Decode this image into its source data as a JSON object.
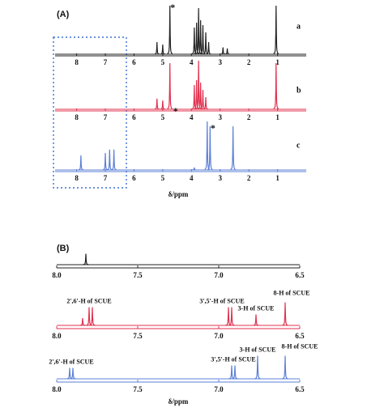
{
  "chart_data": [
    {
      "type": "spectrum",
      "label": "(A)",
      "x_label": "δ/ppm",
      "xlim": [
        8.75,
        0
      ],
      "xticks": [
        8,
        7,
        6,
        5,
        4,
        3,
        2,
        1
      ],
      "series": [
        {
          "name": "a",
          "color": "#222222",
          "x": [
            5.2,
            5.0,
            4.75,
            3.9,
            3.82,
            3.75,
            3.68,
            3.6,
            3.5,
            3.4,
            2.9,
            2.75,
            1.05
          ],
          "values": [
            25,
            20,
            100,
            55,
            65,
            95,
            70,
            60,
            45,
            25,
            14,
            12,
            100
          ],
          "annotations": [
            {
              "text": "*",
              "x": 4.65
            }
          ]
        },
        {
          "name": "b",
          "color": "#e0304e",
          "x": [
            5.2,
            5.0,
            4.75,
            3.9,
            3.82,
            3.75,
            3.68,
            3.6,
            3.5,
            1.05
          ],
          "values": [
            22,
            18,
            95,
            50,
            60,
            100,
            55,
            40,
            25,
            95
          ],
          "annotations": [
            {
              "text": "*",
              "x": 4.55
            }
          ]
        },
        {
          "name": "c",
          "color": "#5b7fd6",
          "x": [
            7.85,
            7.0,
            6.85,
            6.7,
            3.9,
            3.45,
            3.35,
            2.55
          ],
          "values": [
            30,
            35,
            42,
            42,
            5,
            100,
            90,
            90
          ],
          "annotations": [
            {
              "text": "*",
              "x": 3.25
            }
          ]
        }
      ]
    },
    {
      "type": "spectrum",
      "label": "(B)",
      "x_label": "δ/ppm",
      "xlim": [
        8.0,
        6.5
      ],
      "xticks": [
        {
          "value": 8,
          "label": "8.0"
        },
        7.5,
        {
          "value": 7,
          "label": "7.0"
        },
        6.5
      ],
      "series": [
        {
          "color": "#222222",
          "x": [
            7.82
          ],
          "values": [
            45
          ],
          "annotations": []
        },
        {
          "color": "#e0304e",
          "x": [
            7.84,
            7.8,
            7.78,
            6.94,
            6.92,
            6.77,
            6.59
          ],
          "values": [
            30,
            75,
            75,
            75,
            75,
            45,
            95
          ],
          "annotations": [
            {
              "text": "2',6'-H of SCUE",
              "x": 7.8
            },
            {
              "text": "3',5'-H of SCUE",
              "x": 6.98
            },
            {
              "text": "3-H of SCUE",
              "x": 6.77
            },
            {
              "text": "8-H of SCUE",
              "x": 6.55
            }
          ]
        },
        {
          "color": "#5b7fd6",
          "x": [
            7.92,
            7.9,
            6.92,
            6.9,
            6.76,
            6.59
          ],
          "values": [
            45,
            45,
            55,
            55,
            95,
            95
          ],
          "annotations": [
            {
              "text": "2',6'-H of SCUE",
              "x": 7.91
            },
            {
              "text": "3',5'-H of SCUE",
              "x": 6.91
            },
            {
              "text": "3-H of SCUE",
              "x": 6.76
            },
            {
              "text": "8-H of SCUE",
              "x": 6.5
            }
          ]
        }
      ]
    }
  ]
}
